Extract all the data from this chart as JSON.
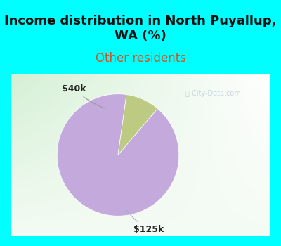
{
  "title": "Income distribution in North Puyallup,\nWA (%)",
  "subtitle": "Other residents",
  "title_bg_color": "#00FFFF",
  "subtitle_color": "#CC5522",
  "slices": [
    {
      "label": "$125k",
      "value": 91,
      "color": "#C4AADC"
    },
    {
      "label": "$40k",
      "value": 9,
      "color": "#BDCA82"
    }
  ],
  "pie_startangle": 82,
  "watermark": "City-Data.com",
  "title_fontsize": 13,
  "subtitle_fontsize": 12,
  "title_color": "#111111",
  "annot_fontsize": 9,
  "annot_color": "#222222",
  "watermark_color": "#aabbcc",
  "watermark_alpha": 0.6,
  "bg_left_color": "#c5e8c5",
  "bg_right_color": "#f0fff0",
  "cyan_border": "#00FFFF"
}
